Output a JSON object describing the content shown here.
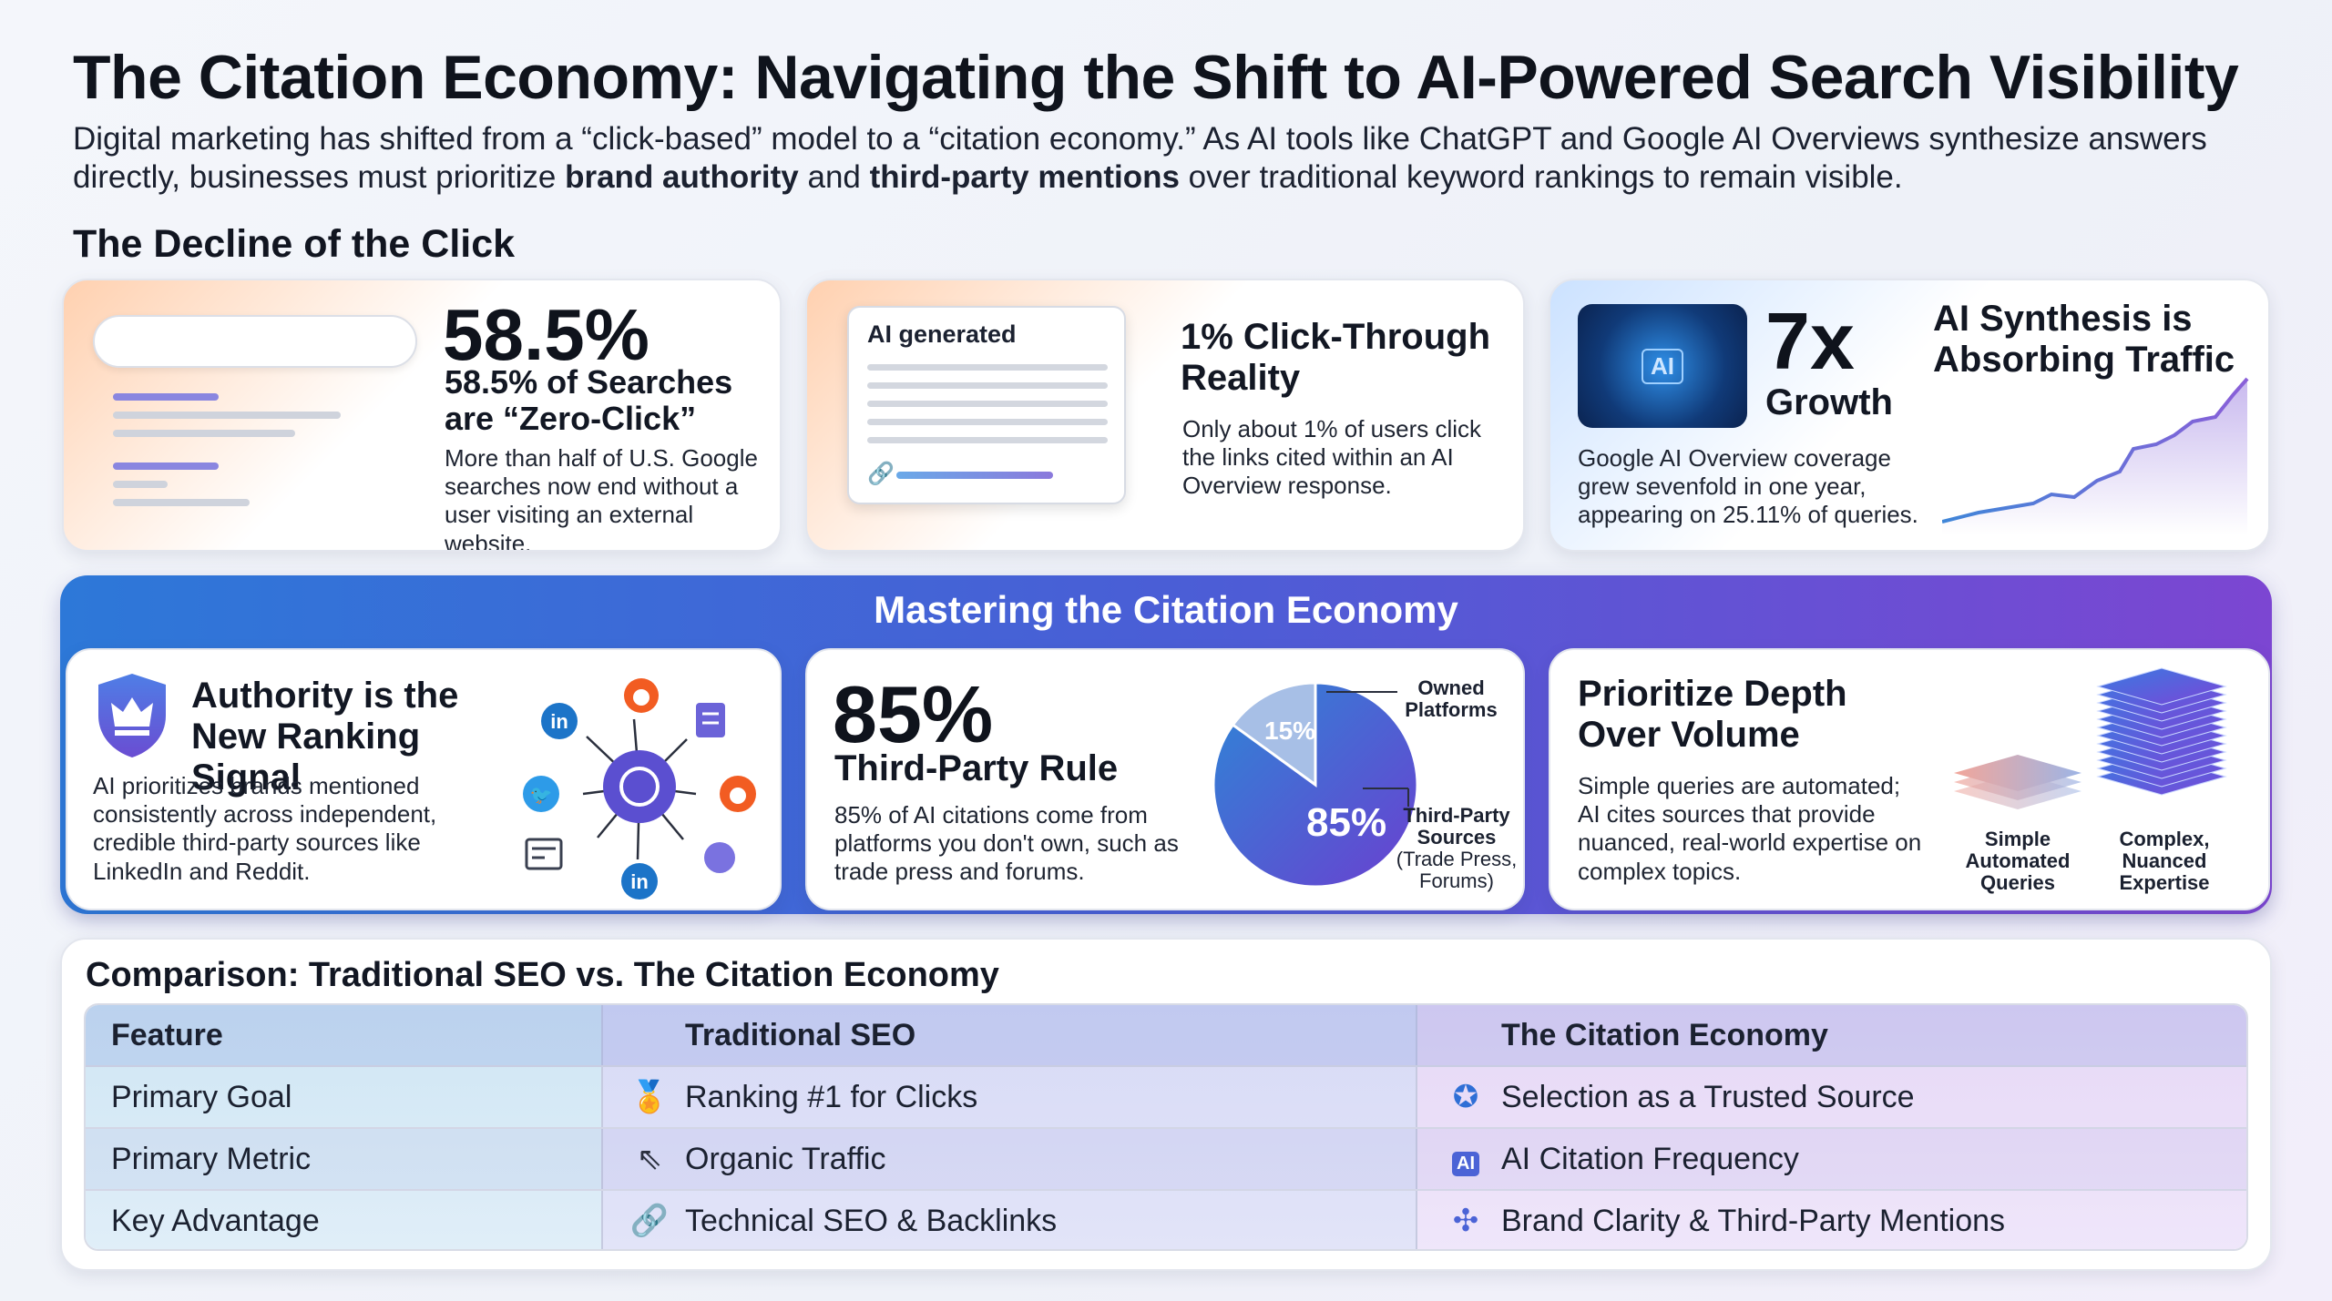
{
  "header": {
    "title": "The Citation Economy: Navigating the Shift to AI-Powered Search Visibility",
    "intro_part1": "Digital marketing has shifted from a “click-based” model to a “citation economy.” As AI tools like ChatGPT and Google AI Overviews synthesize answers directly, businesses must prioritize ",
    "intro_bold1": "brand authority",
    "intro_part2": " and ",
    "intro_bold2": "third-party mentions",
    "intro_part3": " over traditional keyword rankings to remain visible."
  },
  "decline": {
    "heading": "The Decline of the Click",
    "card1": {
      "big": "58.5%",
      "title": "58.5% of Searches are “Zero-Click”",
      "body": "More than half of U.S. Google searches now end without a user visiting an external website."
    },
    "card2": {
      "mock_label": "AI generated",
      "title": "1% Click-Through Reality",
      "body": "Only about 1% of users click the links cited within an AI Overview response."
    },
    "card3": {
      "chip_label": "AI",
      "big": "7x",
      "big_sub": "Growth",
      "title": "AI Synthesis is Absorbing Traffic",
      "body": "Google AI Overview coverage grew sevenfold in one year, appearing on 25.11% of queries."
    }
  },
  "mastering": {
    "title": "Mastering the Citation Economy",
    "card1": {
      "title": "Authority is the New Ranking Signal",
      "body": "AI prioritizes brands mentioned consistently across independent, credible third-party sources like LinkedIn and Reddit.",
      "icons": [
        "linkedin-icon",
        "reddit-icon",
        "document-icon",
        "twitter-icon",
        "openai-icon",
        "reddit-icon",
        "news-icon",
        "linkedin-icon",
        "blog-icon"
      ]
    },
    "card2": {
      "big": "85%",
      "title": "Third-Party Rule",
      "body": "85% of AI citations come from platforms you don't own, such as trade press and forums.",
      "pie_label_small": "15%",
      "pie_label_big": "85%",
      "legend_owned": "Owned Platforms",
      "legend_third": "Third-Party Sources",
      "legend_third_note": "(Trade Press, Forums)"
    },
    "card3": {
      "title": "Prioritize Depth Over Volume",
      "body": "Simple queries are automated; AI cites sources that provide nuanced, real-world expertise on complex topics.",
      "label_simple": "Simple Automated Queries",
      "label_complex": "Complex, Nuanced Expertise"
    }
  },
  "chart_data": {
    "type": "pie",
    "categories": [
      "Owned Platforms",
      "Third-Party Sources"
    ],
    "values": [
      15,
      85
    ],
    "colors": [
      "#a7bfe6",
      "#5a4fd6"
    ]
  },
  "comparison": {
    "title": "Comparison: Traditional SEO vs. The Citation Economy",
    "headers": [
      "Feature",
      "Traditional SEO",
      "The Citation Economy"
    ],
    "rows": [
      {
        "feature": "Primary Goal",
        "seo": "Ranking #1 for Clicks",
        "seo_icon": "medal-icon",
        "citation": "Selection as a Trusted Source",
        "citation_icon": "verified-badge-icon"
      },
      {
        "feature": "Primary Metric",
        "seo": "Organic Traffic",
        "seo_icon": "cursor-click-icon",
        "citation": "AI Citation Frequency",
        "citation_icon": "ai-chip-icon"
      },
      {
        "feature": "Key Advantage",
        "seo": "Technical SEO & Backlinks",
        "seo_icon": "link-icon",
        "citation": "Brand Clarity & Third-Party Mentions",
        "citation_icon": "network-icon"
      }
    ]
  }
}
